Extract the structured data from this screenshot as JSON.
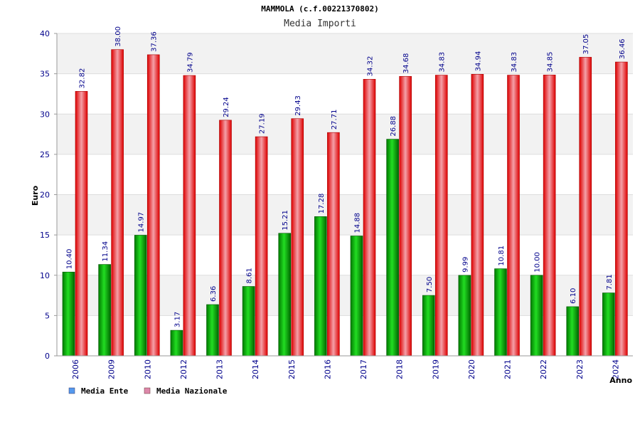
{
  "chart_data": {
    "type": "bar",
    "title": "MAMMOLA (c.f.00221370802)",
    "subtitle": "Media Importi",
    "ylabel": "Euro",
    "xlabel": "Anno",
    "ylim": [
      0,
      40
    ],
    "yticks": [
      "0",
      "5",
      "10",
      "15",
      "20",
      "25",
      "30",
      "35",
      "40"
    ],
    "grid": true,
    "legend_position": "bottom-left",
    "categories": [
      "2006",
      "2009",
      "2010",
      "2012",
      "2013",
      "2014",
      "2015",
      "2016",
      "2017",
      "2018",
      "2019",
      "2020",
      "2021",
      "2022",
      "2023",
      "2024"
    ],
    "series": [
      {
        "name": "Media Ente",
        "color": "#00b000",
        "legend_color": "#5599ee",
        "values": [
          10.4,
          11.34,
          14.97,
          3.17,
          6.36,
          8.61,
          15.21,
          17.28,
          14.88,
          26.88,
          7.5,
          9.99,
          10.81,
          10.0,
          6.1,
          7.81
        ],
        "labels": [
          "10.40",
          "11.34",
          "14.97",
          "3.17",
          "6.36",
          "8.61",
          "15.21",
          "17.28",
          "14.88",
          "26.88",
          "7.50",
          "9.99",
          "10.81",
          "10.00",
          "6.10",
          "7.81"
        ]
      },
      {
        "name": "Media Nazionale",
        "color": "#ee1111",
        "legend_color": "#dd88aa",
        "values": [
          32.82,
          38.0,
          37.36,
          34.79,
          29.24,
          27.19,
          29.43,
          27.71,
          34.32,
          34.68,
          34.83,
          34.94,
          34.83,
          34.85,
          37.05,
          36.46
        ],
        "labels": [
          "32.82",
          "38.00",
          "37.36",
          "34.79",
          "29.24",
          "27.19",
          "29.43",
          "27.71",
          "34.32",
          "34.68",
          "34.83",
          "34.94",
          "34.83",
          "34.85",
          "37.05",
          "36.46"
        ]
      }
    ]
  }
}
